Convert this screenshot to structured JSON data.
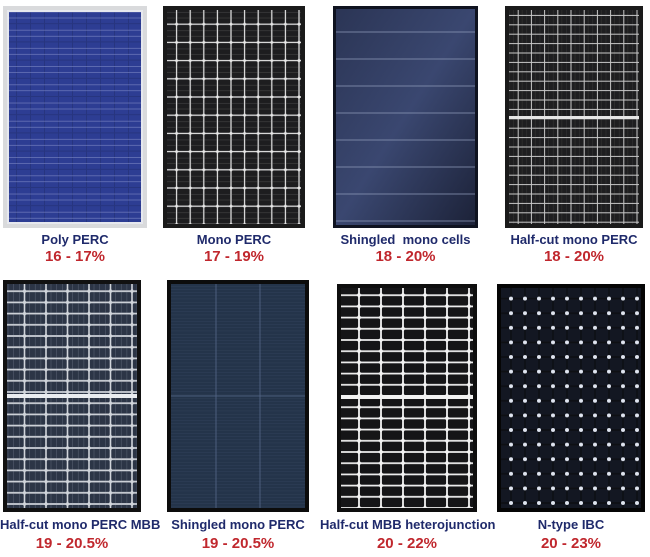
{
  "panels": [
    {
      "name": "Poly PERC",
      "efficiency": "16 - 17%"
    },
    {
      "name": "Mono PERC",
      "efficiency": "17 - 19%"
    },
    {
      "name": "Shingled  mono cells",
      "efficiency": "18 - 20%"
    },
    {
      "name": "Half-cut mono PERC",
      "efficiency": "18 - 20%"
    },
    {
      "name": "Half-cut mono PERC MBB",
      "efficiency": "19 - 20.5%"
    },
    {
      "name": "Shingled mono PERC",
      "efficiency": "19 - 20.5%"
    },
    {
      "name": "Half-cut MBB heterojunction",
      "efficiency": "20 - 22%"
    },
    {
      "name": "N-type IBC",
      "efficiency": "20 - 23%"
    }
  ],
  "colors": {
    "label": "#1f2a6b",
    "efficiency": "#c0272d"
  }
}
